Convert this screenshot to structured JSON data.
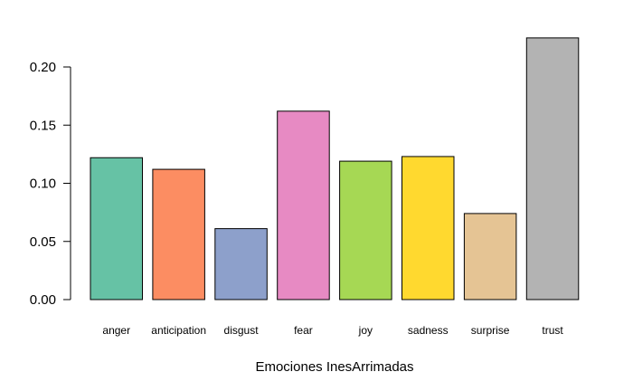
{
  "chart_data": {
    "type": "bar",
    "title": "",
    "xlabel": "Emociones InesArrimadas",
    "ylabel": "",
    "ylim": [
      0,
      0.2
    ],
    "yticks": [
      "0.00",
      "0.05",
      "0.10",
      "0.15",
      "0.20"
    ],
    "categories": [
      "anger",
      "anticipation",
      "disgust",
      "fear",
      "joy",
      "sadness",
      "surprise",
      "trust"
    ],
    "values": [
      0.122,
      0.112,
      0.061,
      0.162,
      0.119,
      0.123,
      0.074,
      0.225
    ],
    "colors": [
      "#66C2A5",
      "#FC8D62",
      "#8DA0CB",
      "#E78AC3",
      "#A6D854",
      "#FFD92F",
      "#E5C494",
      "#B3B3B3"
    ],
    "grid": false,
    "legend": "none"
  }
}
